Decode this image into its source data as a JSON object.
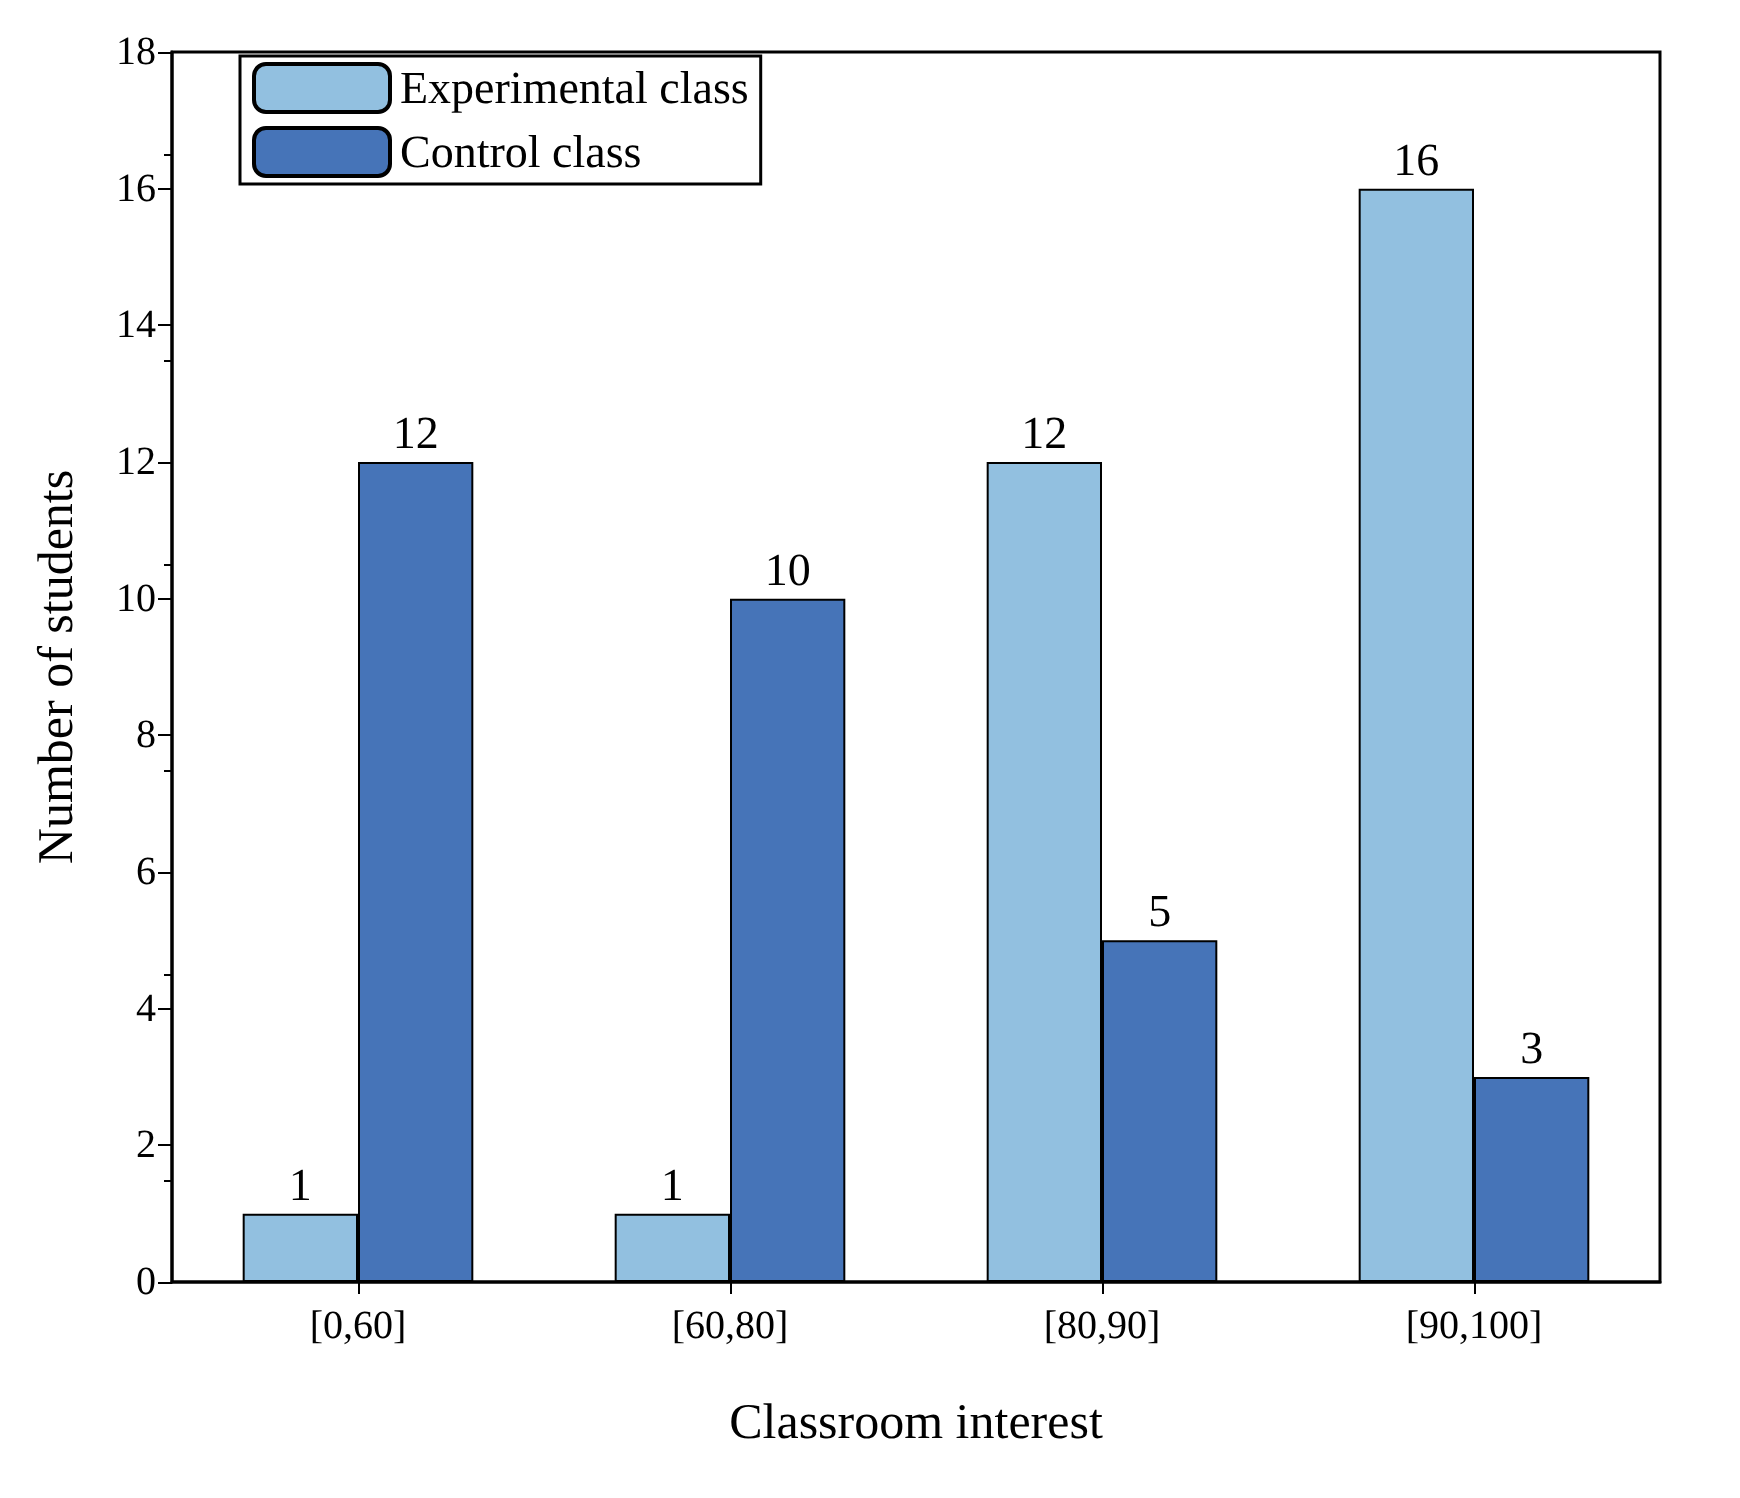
{
  "chart_data": {
    "type": "bar",
    "xlabel": "Classroom interest",
    "ylabel": "Number of students",
    "categories": [
      "[0,60]",
      "[60,80]",
      "[80,90]",
      "[90,100]"
    ],
    "series": [
      {
        "name": "Experimental class",
        "color": "#92c0e0",
        "values": [
          1,
          1,
          12,
          16
        ]
      },
      {
        "name": "Control class",
        "color": "#4674b8",
        "values": [
          12,
          10,
          5,
          3
        ]
      }
    ],
    "ylim": [
      0,
      18
    ],
    "yticks": [
      0,
      2,
      4,
      6,
      8,
      10,
      12,
      14,
      16,
      18
    ],
    "grid": false,
    "legend": "top left",
    "data_labels": true
  }
}
